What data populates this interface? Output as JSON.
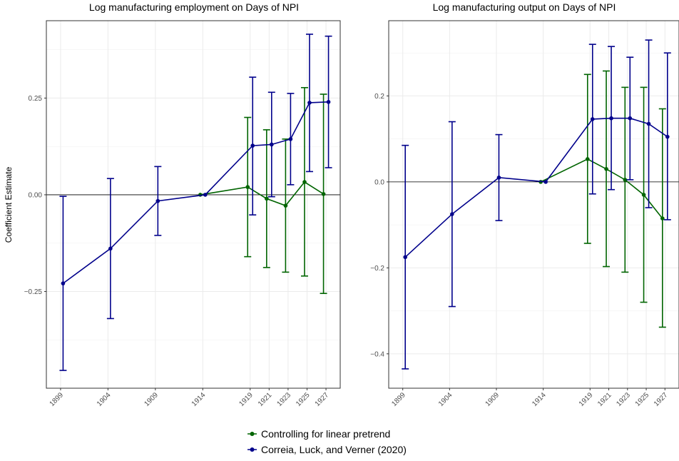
{
  "ylabel": "Coefficient Estimate",
  "legend": [
    {
      "label": "Controlling for linear pretrend",
      "color": "#006400"
    },
    {
      "label": "Correia, Luck, and Verner (2020)",
      "color": "#00008b"
    }
  ],
  "chart_data": [
    {
      "type": "line",
      "title": "Log manufacturing employment on Days of NPI",
      "xlabel": "",
      "ylabel": "Coefficient Estimate",
      "x_ticks": [
        "1899",
        "1904",
        "1909",
        "1914",
        "1919",
        "1921",
        "1923",
        "1925",
        "1927"
      ],
      "xlim": [
        1897.5,
        1928.5
      ],
      "ylim": [
        -0.5,
        0.45
      ],
      "y_ticks": [
        "-0.25",
        "0.00",
        "0.25"
      ],
      "grid": true,
      "reference_line": 0,
      "legend_position": "bottom",
      "series": [
        {
          "name": "Controlling for linear pretrend",
          "color": "#006400",
          "x": [
            1914,
            1919,
            1921,
            1923,
            1925,
            1927
          ],
          "y": [
            0.0,
            0.02,
            -0.01,
            -0.028,
            0.033,
            0.002
          ],
          "lower": [
            0.0,
            -0.16,
            -0.188,
            -0.2,
            -0.21,
            -0.255
          ],
          "upper": [
            0.0,
            0.2,
            0.168,
            0.144,
            0.277,
            0.26
          ]
        },
        {
          "name": "Correia, Luck, and Verner (2020)",
          "color": "#00008b",
          "x": [
            1899,
            1904,
            1909,
            1914,
            1919,
            1921,
            1923,
            1925,
            1927
          ],
          "y": [
            -0.229,
            -0.139,
            -0.016,
            0.0,
            0.127,
            0.13,
            0.144,
            0.238,
            0.24
          ],
          "lower": [
            -0.454,
            -0.32,
            -0.105,
            0.0,
            -0.052,
            -0.005,
            0.026,
            0.06,
            0.07
          ],
          "upper": [
            -0.004,
            0.042,
            0.073,
            0.0,
            0.304,
            0.265,
            0.262,
            0.415,
            0.41
          ]
        }
      ]
    },
    {
      "type": "line",
      "title": "Log manufacturing output on Days of NPI",
      "xlabel": "",
      "ylabel": "",
      "x_ticks": [
        "1899",
        "1904",
        "1909",
        "1914",
        "1919",
        "1921",
        "1923",
        "1925",
        "1927"
      ],
      "xlim": [
        1897.5,
        1928.5
      ],
      "ylim": [
        -0.48,
        0.375
      ],
      "y_ticks": [
        "-0.4",
        "-0.2",
        "0.0",
        "0.2"
      ],
      "grid": true,
      "reference_line": 0,
      "legend_position": "bottom",
      "series": [
        {
          "name": "Controlling for linear pretrend",
          "color": "#006400",
          "x": [
            1914,
            1919,
            1921,
            1923,
            1925,
            1927
          ],
          "y": [
            0.0,
            0.053,
            0.03,
            0.005,
            -0.03,
            -0.085
          ],
          "lower": [
            0.0,
            -0.143,
            -0.197,
            -0.21,
            -0.28,
            -0.338
          ],
          "upper": [
            0.0,
            0.25,
            0.258,
            0.22,
            0.22,
            0.17
          ]
        },
        {
          "name": "Correia, Luck, and Verner (2020)",
          "color": "#00008b",
          "x": [
            1899,
            1904,
            1909,
            1914,
            1919,
            1921,
            1923,
            1925,
            1927
          ],
          "y": [
            -0.175,
            -0.075,
            0.01,
            0.0,
            0.146,
            0.148,
            0.148,
            0.135,
            0.105
          ],
          "lower": [
            -0.435,
            -0.29,
            -0.09,
            0.0,
            -0.028,
            -0.018,
            0.005,
            -0.06,
            -0.088
          ],
          "upper": [
            0.085,
            0.14,
            0.11,
            0.0,
            0.32,
            0.315,
            0.29,
            0.33,
            0.3
          ]
        }
      ]
    }
  ]
}
